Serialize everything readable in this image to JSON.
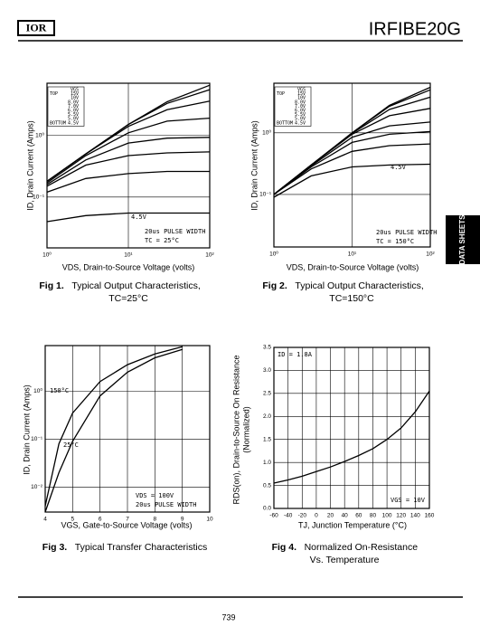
{
  "header": {
    "logo": "IOR",
    "part": "IRFIBE20G"
  },
  "side_tab": "DATA SHEETS",
  "page_number": "739",
  "chart_data": [
    {
      "type": "line",
      "fig_label": "Fig 1.",
      "caption": [
        "Typical Output Characteristics,",
        "TC=25°C"
      ],
      "xlabel": "VDS, Drain-to-Source Voltage (volts)",
      "ylabel": "ID, Drain Current (Amps)",
      "xscale": "log",
      "yscale": "log",
      "xlim": [
        1,
        100
      ],
      "ylim": [
        0.015,
        7
      ],
      "xticks": [
        {
          "value": 1,
          "label": "10⁰"
        },
        {
          "value": 10,
          "label": "10¹"
        },
        {
          "value": 100,
          "label": "10²"
        }
      ],
      "yticks": [
        {
          "value": 0.1,
          "label": "10⁻¹"
        },
        {
          "value": 1,
          "label": "10⁰"
        }
      ],
      "grid": true,
      "color": "#000000",
      "legend_title": "VGS",
      "legend_top": "TOP",
      "legend_bottom": "BOTTOM",
      "annotations": [
        "4.5V",
        "20us PULSE WIDTH",
        "TC = 25°C"
      ],
      "x": [
        1,
        3,
        10,
        30,
        100
      ],
      "series": [
        {
          "name": "15V",
          "values": [
            0.18,
            0.5,
            1.5,
            3.5,
            6.5
          ]
        },
        {
          "name": "10V",
          "values": [
            0.18,
            0.5,
            1.5,
            3.3,
            5.5
          ]
        },
        {
          "name": "8.0V",
          "values": [
            0.18,
            0.5,
            1.4,
            2.6,
            3.6
          ]
        },
        {
          "name": "7.0V",
          "values": [
            0.17,
            0.47,
            1.1,
            1.7,
            1.9
          ]
        },
        {
          "name": "6.0V",
          "values": [
            0.16,
            0.4,
            0.75,
            0.9,
            0.93
          ]
        },
        {
          "name": "5.5V",
          "values": [
            0.15,
            0.33,
            0.47,
            0.52,
            0.54
          ]
        },
        {
          "name": "5.0V",
          "values": [
            0.12,
            0.2,
            0.24,
            0.26,
            0.26
          ]
        },
        {
          "name": "4.5V",
          "values": [
            0.04,
            0.05,
            0.055,
            0.055,
            0.055
          ]
        }
      ]
    },
    {
      "type": "line",
      "fig_label": "Fig 2.",
      "caption": [
        "Typical Output Characteristics,",
        "TC=150°C"
      ],
      "xlabel": "VDS, Drain-to-Source Voltage (volts)",
      "ylabel": "ID, Drain Current (Amps)",
      "xscale": "log",
      "yscale": "log",
      "xlim": [
        1,
        100
      ],
      "ylim": [
        0.014,
        6.4
      ],
      "xticks": [
        {
          "value": 1,
          "label": "10⁰"
        },
        {
          "value": 10,
          "label": "10¹"
        },
        {
          "value": 100,
          "label": "10²"
        }
      ],
      "yticks": [
        {
          "value": 0.1,
          "label": "10⁻¹"
        },
        {
          "value": 1,
          "label": "10⁰"
        }
      ],
      "grid": true,
      "color": "#000000",
      "legend_title": "VGS",
      "legend_top": "TOP",
      "legend_bottom": "BOTTOM",
      "annotations": [
        "4.5V",
        "20us PULSE WIDTH",
        "TC = 150°C"
      ],
      "x": [
        1,
        3,
        10,
        30,
        100
      ],
      "series": [
        {
          "name": "15V",
          "values": [
            0.1,
            0.3,
            1,
            2.8,
            5.5
          ]
        },
        {
          "name": "10V",
          "values": [
            0.1,
            0.3,
            1,
            2.7,
            5
          ]
        },
        {
          "name": "8.0V",
          "values": [
            0.1,
            0.3,
            0.98,
            2.4,
            3.8
          ]
        },
        {
          "name": "7.0V",
          "values": [
            0.1,
            0.3,
            0.95,
            1.9,
            2.5
          ]
        },
        {
          "name": "6.0V",
          "values": [
            0.1,
            0.29,
            0.85,
            1.3,
            1.5
          ]
        },
        {
          "name": "5.5V",
          "values": [
            0.1,
            0.28,
            0.7,
            0.95,
            1.05
          ]
        },
        {
          "name": "5.0V",
          "values": [
            0.1,
            0.26,
            0.5,
            0.62,
            0.66
          ]
        },
        {
          "name": "4.5V",
          "values": [
            0.09,
            0.2,
            0.28,
            0.3,
            0.31
          ]
        }
      ]
    },
    {
      "type": "line",
      "fig_label": "Fig 3.",
      "caption": [
        "Typical Transfer Characteristics"
      ],
      "xlabel": "VGS, Gate-to-Source Voltage (volts)",
      "ylabel": "ID, Drain Current (Amps)",
      "yscale": "log",
      "xlim": [
        4,
        10
      ],
      "ylim": [
        0.003,
        9
      ],
      "xticks": [
        4,
        5,
        6,
        7,
        8,
        9,
        10
      ],
      "yticks": [
        {
          "value": 0.01,
          "label": "10⁻²"
        },
        {
          "value": 0.1,
          "label": "10⁻¹"
        },
        {
          "value": 1,
          "label": "10⁰"
        }
      ],
      "grid": true,
      "color": "#000000",
      "annotations": [
        "VDS = 100V",
        "20us PULSE WIDTH"
      ],
      "x": [
        4,
        4.5,
        5,
        6,
        7,
        8,
        9
      ],
      "series": [
        {
          "name": "150°C",
          "values": [
            0.004,
            0.08,
            0.35,
            1.6,
            3.6,
            6,
            8.5
          ]
        },
        {
          "name": "25°C",
          "values": [
            0.003,
            0.02,
            0.09,
            0.8,
            2.5,
            5,
            7.5
          ]
        }
      ]
    },
    {
      "type": "line",
      "fig_label": "Fig 4.",
      "caption": [
        "Normalized On-Resistance",
        "Vs. Temperature"
      ],
      "xlabel": "TJ, Junction Temperature (°C)",
      "ylabel": [
        "RDS(on), Drain-to-Source On Resistance",
        "(Normalized)"
      ],
      "xlim": [
        -60,
        160
      ],
      "ylim": [
        0,
        3.5
      ],
      "xticks": [
        -60,
        -40,
        -20,
        0,
        20,
        40,
        60,
        80,
        100,
        120,
        140,
        160
      ],
      "yticks": [
        {
          "value": 0,
          "label": "0.0"
        },
        0.5,
        {
          "value": 1,
          "label": "1.0"
        },
        1.5,
        {
          "value": 2,
          "label": "2.0"
        },
        2.5,
        {
          "value": 3,
          "label": "3.0"
        },
        3.5
      ],
      "grid": true,
      "color": "#000000",
      "annotations": [
        "ID = 1.8A",
        "VGS = 10V"
      ],
      "x": [
        -60,
        -40,
        -20,
        0,
        20,
        40,
        60,
        80,
        100,
        120,
        140,
        160
      ],
      "series": [
        {
          "values": [
            0.55,
            0.62,
            0.7,
            0.8,
            0.9,
            1.02,
            1.15,
            1.3,
            1.5,
            1.75,
            2.1,
            2.55
          ]
        }
      ]
    }
  ]
}
